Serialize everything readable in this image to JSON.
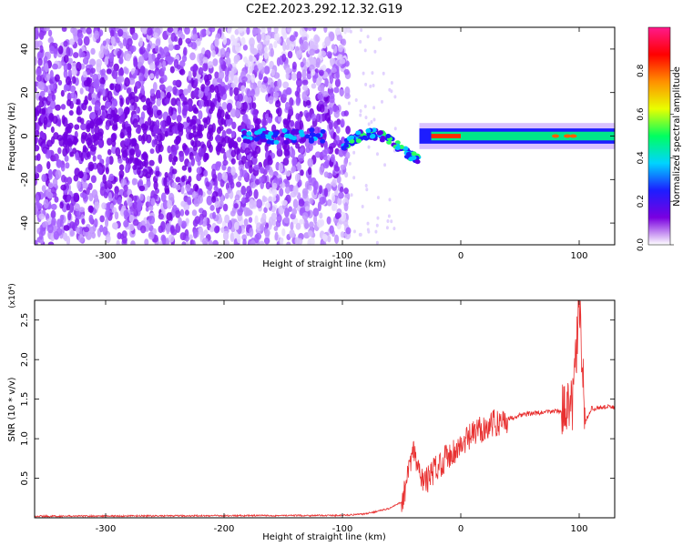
{
  "title": "C2E2.2023.292.12.32.G19",
  "chart_data": [
    {
      "type": "heatmap",
      "xlabel": "Height of straight line (km)",
      "ylabel": "Frequency (Hz)",
      "xlim": [
        -360,
        130
      ],
      "ylim": [
        -50,
        50
      ],
      "xticks": [
        -300,
        -200,
        -100,
        0,
        100
      ],
      "yticks": [
        -40,
        -20,
        0,
        20,
        40
      ],
      "colorbar": {
        "label": "Normalized spectral amplitude",
        "range": [
          0,
          1
        ],
        "ticks": [
          "0.0",
          "0.2",
          "0.4",
          "0.6",
          "0.8"
        ],
        "colors": [
          "#ffffff",
          "#7a00e0",
          "#1d1dff",
          "#00d4ff",
          "#00ff60",
          "#e8ff00",
          "#ff9000",
          "#ff0000",
          "#ff1a8c"
        ]
      },
      "regions": [
        {
          "x": [
            -360,
            -95
          ],
          "description": "noise"
        },
        {
          "x": [
            -185,
            -115
          ],
          "frequency": 0
        },
        {
          "x": [
            -100,
            -35
          ],
          "frequency": -5
        },
        {
          "x": [
            -35,
            130
          ],
          "frequency": 0
        }
      ]
    },
    {
      "type": "line",
      "xlabel": "Height of straight line (km)",
      "ylabel": "SNR (10 * v/v)",
      "y_multiplier": "(x10⁴)",
      "xlim": [
        -360,
        130
      ],
      "ylim": [
        0,
        2.75
      ],
      "xticks": [
        -300,
        -200,
        -100,
        0,
        100
      ],
      "yticks": [
        "0.5",
        "1.0",
        "1.5",
        "2.0",
        "2.5"
      ],
      "color": "#e83030",
      "series": [
        {
          "x": [
            -360,
            -100,
            -80,
            -60,
            -50,
            -45,
            -40,
            -35,
            -30,
            -20,
            -10,
            0,
            10,
            20,
            30,
            40,
            50,
            60,
            70,
            80,
            90,
            95,
            100,
            105,
            110,
            120,
            130
          ],
          "y": [
            0.02,
            0.03,
            0.05,
            0.12,
            0.2,
            0.5,
            0.85,
            0.55,
            0.45,
            0.65,
            0.8,
            0.9,
            1.05,
            1.15,
            1.2,
            1.25,
            1.3,
            1.32,
            1.33,
            1.35,
            1.35,
            1.45,
            2.72,
            1.2,
            1.38,
            1.4,
            1.4
          ]
        }
      ]
    }
  ]
}
